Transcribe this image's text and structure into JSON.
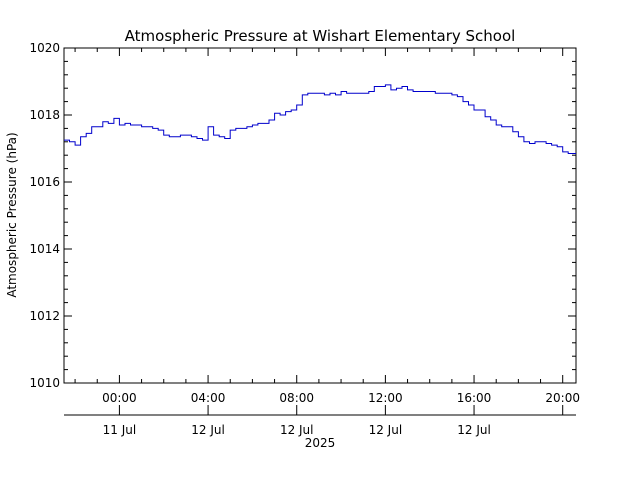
{
  "chart_data": {
    "type": "line",
    "title": "Atmospheric Pressure at Wishart Elementary School",
    "ylabel": "Atmospheric Pressure (hPa)",
    "xlabel_year": "2025",
    "ylim": [
      1010,
      1020
    ],
    "yticks": [
      1010,
      1012,
      1014,
      1016,
      1018,
      1020
    ],
    "yticks_labels": [
      "1010",
      "1012",
      "1014",
      "1016",
      "1018",
      "1020"
    ],
    "xlim_hours": [
      -2.5,
      20.6
    ],
    "xticks": [
      {
        "hour": 0,
        "time": "00:00",
        "date": "11 Jul"
      },
      {
        "hour": 4,
        "time": "04:00",
        "date": "12 Jul"
      },
      {
        "hour": 8,
        "time": "08:00",
        "date": "12 Jul"
      },
      {
        "hour": 12,
        "time": "12:00",
        "date": "12 Jul"
      },
      {
        "hour": 16,
        "time": "16:00",
        "date": "12 Jul"
      },
      {
        "hour": 20,
        "time": "20:00",
        "date": ""
      }
    ],
    "series_color": "#0000cc",
    "series": [
      {
        "x": [
          -2.5,
          -2.25,
          -2.0,
          -1.75,
          -1.5,
          -1.25,
          -1.0,
          -0.75,
          -0.5,
          -0.25,
          0.0,
          0.25,
          0.5,
          0.75,
          1.0,
          1.25,
          1.5,
          1.75,
          2.0,
          2.25,
          2.5,
          2.75,
          3.0,
          3.25,
          3.5,
          3.75,
          4.0,
          4.25,
          4.5,
          4.75,
          5.0,
          5.25,
          5.5,
          5.75,
          6.0,
          6.25,
          6.5,
          6.75,
          7.0,
          7.25,
          7.5,
          7.75,
          8.0,
          8.25,
          8.5,
          8.75,
          9.0,
          9.25,
          9.5,
          9.75,
          10.0,
          10.25,
          10.5,
          10.75,
          11.0,
          11.25,
          11.5,
          11.75,
          12.0,
          12.25,
          12.5,
          12.75,
          13.0,
          13.25,
          13.5,
          13.75,
          14.0,
          14.25,
          14.5,
          14.75,
          15.0,
          15.25,
          15.5,
          15.75,
          16.0,
          16.25,
          16.5,
          16.75,
          17.0,
          17.25,
          17.5,
          17.75,
          18.0,
          18.25,
          18.5,
          18.75,
          19.0,
          19.25,
          19.5,
          19.75,
          20.0,
          20.25,
          20.5
        ],
        "y": [
          1017.25,
          1017.2,
          1017.1,
          1017.35,
          1017.45,
          1017.65,
          1017.65,
          1017.8,
          1017.75,
          1017.9,
          1017.7,
          1017.75,
          1017.7,
          1017.7,
          1017.65,
          1017.65,
          1017.6,
          1017.55,
          1017.4,
          1017.35,
          1017.35,
          1017.4,
          1017.4,
          1017.35,
          1017.3,
          1017.25,
          1017.65,
          1017.4,
          1017.35,
          1017.3,
          1017.55,
          1017.6,
          1017.6,
          1017.65,
          1017.7,
          1017.75,
          1017.75,
          1017.85,
          1018.05,
          1018.0,
          1018.1,
          1018.15,
          1018.3,
          1018.6,
          1018.65,
          1018.65,
          1018.65,
          1018.6,
          1018.65,
          1018.6,
          1018.7,
          1018.65,
          1018.65,
          1018.65,
          1018.65,
          1018.7,
          1018.85,
          1018.85,
          1018.9,
          1018.75,
          1018.8,
          1018.85,
          1018.75,
          1018.7,
          1018.7,
          1018.7,
          1018.7,
          1018.65,
          1018.65,
          1018.65,
          1018.6,
          1018.55,
          1018.4,
          1018.3,
          1018.15,
          1018.15,
          1017.95,
          1017.85,
          1017.7,
          1017.65,
          1017.65,
          1017.5,
          1017.35,
          1017.2,
          1017.15,
          1017.2,
          1017.2,
          1017.15,
          1017.1,
          1017.05,
          1016.9,
          1016.85,
          1016.85
        ]
      }
    ]
  }
}
